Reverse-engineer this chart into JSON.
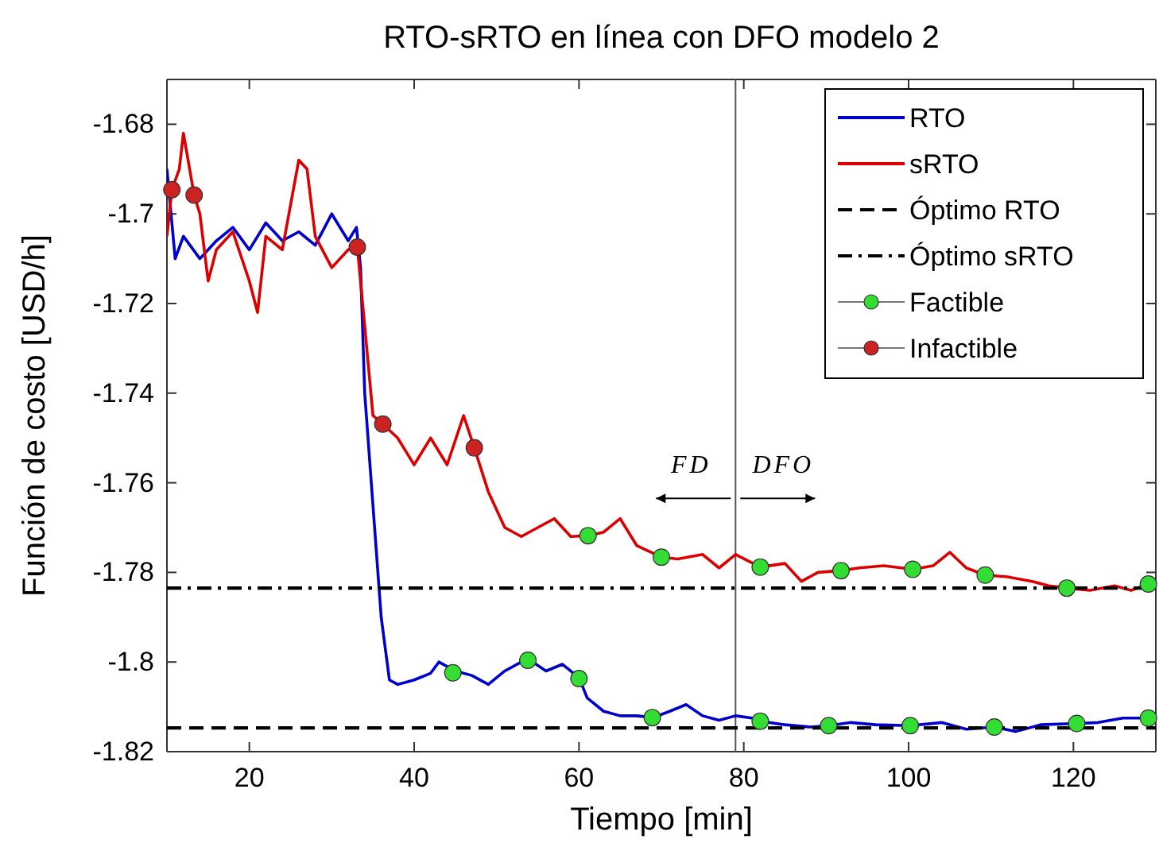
{
  "chart_data": {
    "type": "line",
    "title": "RTO-sRTO en línea con DFO modelo 2",
    "xlabel": "Tiempo [min]",
    "ylabel": "Función de costo [USD/h]",
    "xlim": [
      10,
      130
    ],
    "xticks": [
      20,
      40,
      60,
      80,
      100,
      120
    ],
    "ylim": [
      -1.82,
      -1.67
    ],
    "yticks": [
      -1.82,
      -1.8,
      -1.78,
      -1.76,
      -1.74,
      -1.72,
      -1.7,
      -1.68
    ],
    "grid": false,
    "legend": "top right",
    "series": [
      {
        "name": "RTO",
        "color": "#0000cc",
        "line_style": "solid",
        "x": [
          10,
          11,
          12,
          14,
          16,
          18,
          20,
          22,
          24,
          26,
          28,
          30,
          32,
          33,
          33.5,
          34,
          35,
          36,
          37,
          38,
          40,
          42,
          43,
          45,
          47,
          49,
          51,
          53,
          54,
          56,
          58,
          60,
          61,
          63,
          65,
          67,
          69,
          71,
          73,
          75,
          77,
          79,
          81,
          82,
          85,
          88,
          90.3,
          93,
          96,
          100.2,
          104,
          107,
          110.4,
          113,
          116,
          120.4,
          123,
          126,
          129.1,
          130
        ],
        "values": [
          -1.69,
          -1.71,
          -1.705,
          -1.71,
          -1.706,
          -1.703,
          -1.708,
          -1.702,
          -1.706,
          -1.704,
          -1.707,
          -1.7,
          -1.706,
          -1.703,
          -1.712,
          -1.74,
          -1.765,
          -1.79,
          -1.804,
          -1.805,
          -1.804,
          -1.8025,
          -1.8,
          -1.802,
          -1.803,
          -1.805,
          -1.802,
          -1.8,
          -1.7995,
          -1.802,
          -1.8005,
          -1.8035,
          -1.808,
          -1.811,
          -1.812,
          -1.812,
          -1.8124,
          -1.811,
          -1.8095,
          -1.812,
          -1.813,
          -1.812,
          -1.8125,
          -1.8132,
          -1.814,
          -1.8145,
          -1.8142,
          -1.8135,
          -1.814,
          -1.8142,
          -1.8135,
          -1.815,
          -1.8145,
          -1.8155,
          -1.814,
          -1.8137,
          -1.8135,
          -1.8125,
          -1.8125,
          -1.8125
        ]
      },
      {
        "name": "sRTO",
        "color": "#dd0000",
        "line_style": "solid",
        "x": [
          10,
          10.6,
          11.5,
          12,
          13.3,
          14,
          15,
          16,
          18,
          20,
          21,
          22,
          24,
          26,
          27,
          28,
          30,
          32,
          33.1,
          34,
          35,
          36.2,
          38,
          40,
          42,
          44,
          46,
          47.3,
          49,
          51,
          53,
          55,
          57,
          59,
          61.1,
          63,
          65,
          67,
          70,
          72,
          75,
          77,
          79,
          82,
          85,
          87,
          89,
          91.8,
          94,
          97,
          100.5,
          103,
          105,
          107,
          109.3,
          112,
          115,
          117,
          119.2,
          122,
          125,
          127,
          129.1,
          130
        ],
        "values": [
          -1.705,
          -1.6946,
          -1.69,
          -1.682,
          -1.6958,
          -1.7,
          -1.715,
          -1.708,
          -1.704,
          -1.715,
          -1.722,
          -1.705,
          -1.708,
          -1.688,
          -1.69,
          -1.705,
          -1.712,
          -1.708,
          -1.7074,
          -1.725,
          -1.745,
          -1.7469,
          -1.75,
          -1.756,
          -1.75,
          -1.756,
          -1.745,
          -1.7522,
          -1.762,
          -1.77,
          -1.772,
          -1.77,
          -1.768,
          -1.772,
          -1.7718,
          -1.771,
          -1.768,
          -1.774,
          -1.7766,
          -1.777,
          -1.776,
          -1.779,
          -1.776,
          -1.7788,
          -1.778,
          -1.782,
          -1.78,
          -1.7796,
          -1.779,
          -1.7785,
          -1.7793,
          -1.7785,
          -1.7755,
          -1.779,
          -1.7806,
          -1.781,
          -1.782,
          -1.783,
          -1.7835,
          -1.784,
          -1.783,
          -1.784,
          -1.7826,
          -1.783
        ]
      },
      {
        "name": "Óptimo RTO",
        "color": "#000000",
        "line_style": "dashed",
        "x": [
          10,
          130
        ],
        "values": [
          -1.8147,
          -1.8147
        ]
      },
      {
        "name": "Óptimo sRTO",
        "color": "#000000",
        "line_style": "dashdot",
        "x": [
          10,
          130
        ],
        "values": [
          -1.7835,
          -1.7835
        ]
      },
      {
        "name": "Factible",
        "type": "scatter",
        "color": "#33dd33",
        "marker": "circle",
        "x": [
          44.7,
          53.8,
          60,
          61.1,
          68.9,
          70,
          82,
          82,
          90.3,
          91.8,
          100.2,
          100.5,
          110.4,
          109.3,
          119.2,
          120.4,
          129.1,
          129.1
        ],
        "values": [
          -1.8024,
          -1.7996,
          -1.8037,
          -1.7718,
          -1.8124,
          -1.7766,
          -1.8132,
          -1.7788,
          -1.8142,
          -1.7796,
          -1.8142,
          -1.7793,
          -1.8145,
          -1.7806,
          -1.7835,
          -1.8137,
          -1.7826,
          -1.8125
        ]
      },
      {
        "name": "Infactible",
        "type": "scatter",
        "color": "#cc2222",
        "marker": "circle",
        "x": [
          10.6,
          13.3,
          33.1,
          36.2,
          47.3
        ],
        "values": [
          -1.6946,
          -1.6958,
          -1.7074,
          -1.7469,
          -1.7522
        ]
      }
    ],
    "ref_lines": [
      {
        "axis": "x",
        "value": 79,
        "color": "#555555"
      }
    ],
    "annotations": [
      {
        "text": "FD",
        "x": 79,
        "y": -1.7635
      },
      {
        "text": "DFO",
        "x": 79,
        "y": -1.7635
      }
    ]
  }
}
